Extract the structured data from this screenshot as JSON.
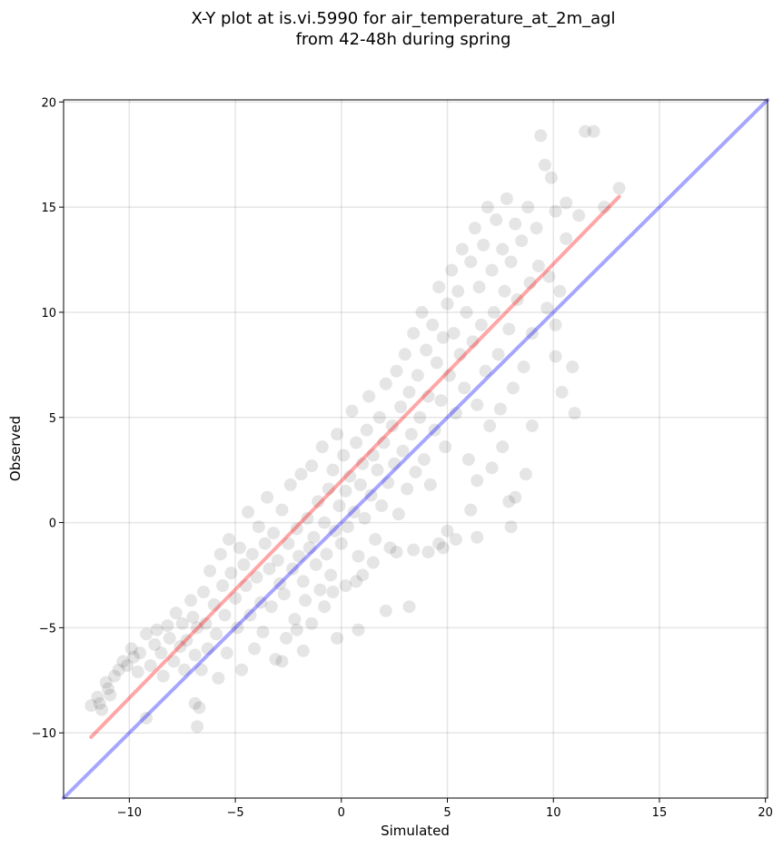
{
  "chart_data": {
    "type": "scatter",
    "title": "X-Y plot at is.vi.5990 for air_temperature_at_2m_agl",
    "subtitle": "from 42-48h during spring",
    "xlabel": "Simulated",
    "ylabel": "Observed",
    "xlim": [
      -13.1,
      20.1
    ],
    "ylim": [
      -13.1,
      20.1
    ],
    "xticks": [
      -10,
      -5,
      0,
      5,
      10,
      15,
      20
    ],
    "yticks": [
      -10,
      -5,
      0,
      5,
      10,
      15,
      20
    ],
    "xtick_labels": [
      "−10",
      "−5",
      "0",
      "5",
      "10",
      "15",
      "20"
    ],
    "ytick_labels": [
      "−10",
      "−5",
      "0",
      "5",
      "10",
      "15",
      "20"
    ],
    "grid": true,
    "point_color": "#000000",
    "point_alpha": 0.1,
    "lines": [
      {
        "role": "regression",
        "color": "#ff0000",
        "x": [
          -11.8,
          13.1
        ],
        "y": [
          -10.2,
          15.5
        ]
      },
      {
        "role": "identity",
        "color": "#0000ff",
        "x": [
          -13.1,
          20.1
        ],
        "y": [
          -13.1,
          20.1
        ]
      }
    ],
    "points": [
      [
        -11.8,
        -8.7
      ],
      [
        -11.5,
        -8.3
      ],
      [
        -11.4,
        -8.6
      ],
      [
        -11.3,
        -8.9
      ],
      [
        -11.1,
        -7.6
      ],
      [
        -11.0,
        -7.9
      ],
      [
        -10.9,
        -8.2
      ],
      [
        -10.7,
        -7.3
      ],
      [
        -10.5,
        -7.0
      ],
      [
        -10.3,
        -6.6
      ],
      [
        -10.1,
        -6.8
      ],
      [
        -9.9,
        -6.0
      ],
      [
        -9.8,
        -6.4
      ],
      [
        -9.6,
        -7.1
      ],
      [
        -9.5,
        -6.2
      ],
      [
        -9.2,
        -5.3
      ],
      [
        -9.2,
        -9.3
      ],
      [
        -9.0,
        -6.8
      ],
      [
        -8.8,
        -5.8
      ],
      [
        -8.7,
        -5.1
      ],
      [
        -8.5,
        -6.2
      ],
      [
        -8.4,
        -7.3
      ],
      [
        -8.2,
        -4.9
      ],
      [
        -8.1,
        -5.5
      ],
      [
        -7.9,
        -6.6
      ],
      [
        -7.8,
        -4.3
      ],
      [
        -7.6,
        -5.9
      ],
      [
        -7.5,
        -4.8
      ],
      [
        -7.4,
        -7.0
      ],
      [
        -7.3,
        -5.6
      ],
      [
        -7.1,
        -3.7
      ],
      [
        -7.0,
        -4.5
      ],
      [
        -6.9,
        -6.3
      ],
      [
        -6.8,
        -5.0
      ],
      [
        -6.7,
        -8.8
      ],
      [
        -6.8,
        -9.7
      ],
      [
        -6.9,
        -8.6
      ],
      [
        -6.6,
        -7.0
      ],
      [
        -6.5,
        -3.3
      ],
      [
        -6.4,
        -4.8
      ],
      [
        -6.3,
        -6.0
      ],
      [
        -6.2,
        -2.3
      ],
      [
        -6.0,
        -3.9
      ],
      [
        -5.9,
        -5.3
      ],
      [
        -5.8,
        -7.4
      ],
      [
        -5.7,
        -1.5
      ],
      [
        -5.6,
        -3.0
      ],
      [
        -5.5,
        -4.4
      ],
      [
        -5.4,
        -6.2
      ],
      [
        -5.3,
        -0.8
      ],
      [
        -5.2,
        -2.4
      ],
      [
        -5.0,
        -3.6
      ],
      [
        -4.9,
        -5.0
      ],
      [
        -4.8,
        -1.2
      ],
      [
        -4.7,
        -7.0
      ],
      [
        -4.6,
        -2.0
      ],
      [
        -4.5,
        -3.0
      ],
      [
        -4.4,
        0.5
      ],
      [
        -4.3,
        -4.4
      ],
      [
        -4.2,
        -1.5
      ],
      [
        -4.1,
        -6.0
      ],
      [
        -4.0,
        -2.6
      ],
      [
        -3.9,
        -0.2
      ],
      [
        -3.8,
        -3.8
      ],
      [
        -3.7,
        -5.2
      ],
      [
        -3.6,
        -1.0
      ],
      [
        -3.5,
        1.2
      ],
      [
        -3.4,
        -2.2
      ],
      [
        -3.3,
        -4.0
      ],
      [
        -3.2,
        -0.5
      ],
      [
        -3.1,
        -6.5
      ],
      [
        -3.0,
        -1.8
      ],
      [
        -2.9,
        -2.9
      ],
      [
        -2.8,
        0.6
      ],
      [
        -2.7,
        -3.4
      ],
      [
        -2.6,
        -5.5
      ],
      [
        -2.5,
        -1.0
      ],
      [
        -2.4,
        1.8
      ],
      [
        -2.3,
        -2.2
      ],
      [
        -2.2,
        -4.6
      ],
      [
        -2.1,
        -0.3
      ],
      [
        -2.0,
        -1.6
      ],
      [
        -1.9,
        2.3
      ],
      [
        -1.8,
        -2.8
      ],
      [
        -1.7,
        -3.7
      ],
      [
        -1.6,
        0.2
      ],
      [
        -1.5,
        -1.2
      ],
      [
        -1.4,
        2.7
      ],
      [
        -1.3,
        -0.7
      ],
      [
        -1.2,
        -2.0
      ],
      [
        -1.1,
        1.0
      ],
      [
        -1.0,
        -3.2
      ],
      [
        -0.9,
        3.6
      ],
      [
        -0.8,
        0.0
      ],
      [
        -0.7,
        -1.5
      ],
      [
        -0.6,
        1.6
      ],
      [
        -0.5,
        -2.5
      ],
      [
        -0.4,
        2.5
      ],
      [
        -0.3,
        -0.4
      ],
      [
        -0.2,
        4.2
      ],
      [
        -0.1,
        0.8
      ],
      [
        0.0,
        -1.0
      ],
      [
        0.1,
        3.2
      ],
      [
        0.2,
        1.5
      ],
      [
        0.3,
        -0.2
      ],
      [
        0.4,
        2.2
      ],
      [
        0.5,
        5.3
      ],
      [
        0.6,
        0.5
      ],
      [
        0.7,
        3.8
      ],
      [
        0.8,
        -1.6
      ],
      [
        0.9,
        1.8
      ],
      [
        1.0,
        2.8
      ],
      [
        1.1,
        0.2
      ],
      [
        1.2,
        4.4
      ],
      [
        1.3,
        6.0
      ],
      [
        1.4,
        1.3
      ],
      [
        1.5,
        3.2
      ],
      [
        1.6,
        -0.8
      ],
      [
        1.7,
        2.5
      ],
      [
        1.8,
        5.0
      ],
      [
        1.9,
        0.8
      ],
      [
        2.0,
        3.8
      ],
      [
        2.1,
        6.6
      ],
      [
        2.2,
        1.9
      ],
      [
        2.3,
        -1.2
      ],
      [
        2.4,
        4.6
      ],
      [
        2.5,
        2.8
      ],
      [
        2.6,
        7.2
      ],
      [
        2.7,
        0.4
      ],
      [
        2.8,
        5.5
      ],
      [
        2.9,
        3.4
      ],
      [
        3.0,
        8.0
      ],
      [
        3.1,
        1.6
      ],
      [
        3.2,
        6.2
      ],
      [
        3.3,
        4.2
      ],
      [
        3.4,
        9.0
      ],
      [
        3.5,
        2.4
      ],
      [
        3.6,
        7.0
      ],
      [
        3.7,
        5.0
      ],
      [
        3.8,
        10.0
      ],
      [
        3.9,
        3.0
      ],
      [
        4.0,
        8.2
      ],
      [
        4.1,
        6.0
      ],
      [
        4.2,
        1.8
      ],
      [
        4.3,
        9.4
      ],
      [
        4.4,
        4.4
      ],
      [
        4.5,
        7.6
      ],
      [
        4.6,
        11.2
      ],
      [
        4.7,
        5.8
      ],
      [
        4.8,
        8.8
      ],
      [
        4.9,
        3.6
      ],
      [
        5.0,
        10.4
      ],
      [
        5.1,
        7.0
      ],
      [
        5.2,
        12.0
      ],
      [
        5.3,
        9.0
      ],
      [
        5.4,
        5.2
      ],
      [
        5.5,
        11.0
      ],
      [
        5.6,
        8.0
      ],
      [
        5.7,
        13.0
      ],
      [
        5.8,
        6.4
      ],
      [
        5.9,
        10.0
      ],
      [
        6.0,
        3.0
      ],
      [
        6.1,
        12.4
      ],
      [
        6.2,
        8.6
      ],
      [
        6.3,
        14.0
      ],
      [
        6.4,
        5.6
      ],
      [
        6.5,
        11.2
      ],
      [
        6.6,
        9.4
      ],
      [
        6.7,
        13.2
      ],
      [
        6.8,
        7.2
      ],
      [
        6.9,
        15.0
      ],
      [
        7.0,
        4.6
      ],
      [
        7.1,
        12.0
      ],
      [
        7.2,
        10.0
      ],
      [
        7.3,
        14.4
      ],
      [
        7.4,
        8.0
      ],
      [
        7.5,
        5.4
      ],
      [
        7.6,
        13.0
      ],
      [
        7.7,
        11.0
      ],
      [
        7.8,
        15.4
      ],
      [
        7.9,
        9.2
      ],
      [
        8.0,
        12.4
      ],
      [
        8.1,
        6.4
      ],
      [
        8.2,
        14.2
      ],
      [
        8.3,
        10.6
      ],
      [
        8.5,
        13.4
      ],
      [
        8.6,
        7.4
      ],
      [
        8.8,
        15.0
      ],
      [
        8.9,
        11.4
      ],
      [
        9.0,
        9.0
      ],
      [
        9.2,
        14.0
      ],
      [
        9.3,
        12.2
      ],
      [
        9.4,
        18.4
      ],
      [
        9.6,
        17.0
      ],
      [
        9.7,
        10.2
      ],
      [
        9.9,
        16.4
      ],
      [
        10.1,
        14.8
      ],
      [
        10.3,
        11.0
      ],
      [
        10.6,
        15.2
      ],
      [
        10.9,
        7.4
      ],
      [
        11.2,
        14.6
      ],
      [
        11.5,
        18.6
      ],
      [
        11.9,
        18.6
      ],
      [
        12.4,
        15.0
      ],
      [
        13.1,
        15.9
      ],
      [
        8.0,
        -0.2
      ],
      [
        7.9,
        1.0
      ],
      [
        8.2,
        1.2
      ],
      [
        6.4,
        -0.7
      ],
      [
        6.1,
        0.6
      ],
      [
        6.4,
        2.0
      ],
      [
        7.1,
        2.6
      ],
      [
        8.7,
        2.3
      ],
      [
        7.6,
        3.6
      ],
      [
        9.0,
        4.6
      ],
      [
        5.4,
        -0.8
      ],
      [
        5.0,
        -0.4
      ],
      [
        4.6,
        -1.0
      ],
      [
        4.8,
        -1.2
      ],
      [
        4.1,
        -1.4
      ],
      [
        3.4,
        -1.3
      ],
      [
        2.6,
        -1.4
      ],
      [
        1.5,
        -1.9
      ],
      [
        1.0,
        -2.5
      ],
      [
        0.7,
        -2.8
      ],
      [
        0.2,
        -3.0
      ],
      [
        -0.4,
        -3.3
      ],
      [
        -0.8,
        -4.0
      ],
      [
        -1.4,
        -4.8
      ],
      [
        -2.1,
        -5.1
      ],
      [
        -2.8,
        -6.6
      ],
      [
        -1.8,
        -6.1
      ],
      [
        0.8,
        -5.1
      ],
      [
        -0.2,
        -5.5
      ],
      [
        3.2,
        -4.0
      ],
      [
        2.1,
        -4.2
      ],
      [
        10.4,
        6.2
      ],
      [
        10.1,
        7.9
      ],
      [
        10.1,
        9.4
      ],
      [
        11.0,
        5.2
      ],
      [
        9.8,
        11.7
      ],
      [
        10.6,
        13.5
      ]
    ]
  }
}
